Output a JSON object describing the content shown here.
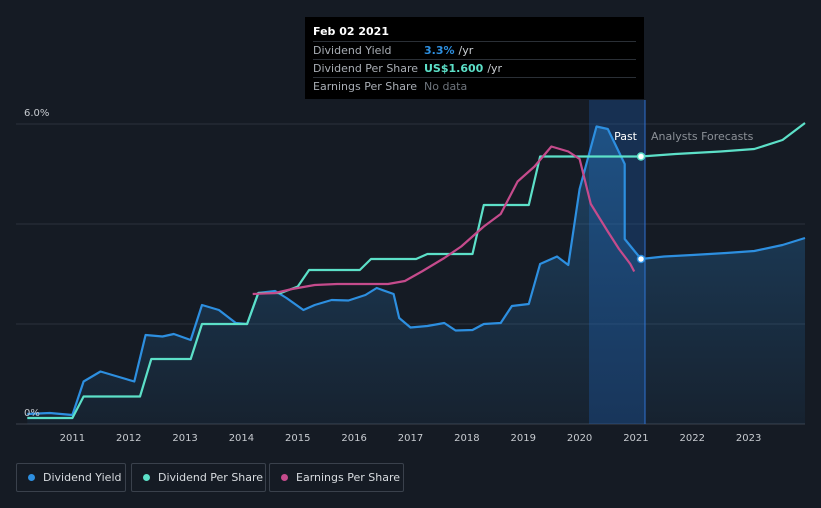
{
  "chart_data": {
    "type": "line",
    "x_ticks": [
      "2011",
      "2012",
      "2013",
      "2014",
      "2015",
      "2016",
      "2017",
      "2018",
      "2019",
      "2020",
      "2021",
      "2022",
      "2023"
    ],
    "y_ticks": [
      "0%",
      "6.0%"
    ],
    "ylim": [
      0,
      6.0
    ],
    "xlim": [
      2010.0,
      2024.0
    ],
    "past_label": "Past",
    "forecast_label": "Analysts Forecasts",
    "forecast_start": 2021.1,
    "series": [
      {
        "name": "Dividend Yield",
        "color": "#2d8fe0",
        "fill": true,
        "points": [
          [
            2010.2,
            0.2
          ],
          [
            2010.6,
            0.22
          ],
          [
            2011.0,
            0.18
          ],
          [
            2011.2,
            0.85
          ],
          [
            2011.5,
            1.05
          ],
          [
            2011.8,
            0.95
          ],
          [
            2012.1,
            0.85
          ],
          [
            2012.3,
            1.78
          ],
          [
            2012.6,
            1.75
          ],
          [
            2012.8,
            1.8
          ],
          [
            2013.1,
            1.68
          ],
          [
            2013.3,
            2.38
          ],
          [
            2013.6,
            2.28
          ],
          [
            2013.9,
            2.02
          ],
          [
            2014.1,
            2.0
          ],
          [
            2014.3,
            2.62
          ],
          [
            2014.6,
            2.66
          ],
          [
            2014.8,
            2.52
          ],
          [
            2015.1,
            2.28
          ],
          [
            2015.3,
            2.38
          ],
          [
            2015.6,
            2.48
          ],
          [
            2015.9,
            2.47
          ],
          [
            2016.2,
            2.58
          ],
          [
            2016.4,
            2.72
          ],
          [
            2016.7,
            2.6
          ],
          [
            2016.8,
            2.12
          ],
          [
            2017.0,
            1.93
          ],
          [
            2017.3,
            1.96
          ],
          [
            2017.6,
            2.02
          ],
          [
            2017.8,
            1.87
          ],
          [
            2018.1,
            1.88
          ],
          [
            2018.3,
            2.0
          ],
          [
            2018.6,
            2.02
          ],
          [
            2018.8,
            2.36
          ],
          [
            2019.1,
            2.4
          ],
          [
            2019.3,
            3.2
          ],
          [
            2019.6,
            3.35
          ],
          [
            2019.8,
            3.18
          ],
          [
            2020.0,
            4.7
          ],
          [
            2020.3,
            5.95
          ],
          [
            2020.5,
            5.9
          ],
          [
            2020.8,
            5.2
          ],
          [
            2020.8,
            3.7
          ],
          [
            2021.09,
            3.3
          ],
          [
            2021.5,
            3.35
          ],
          [
            2022.0,
            3.38
          ],
          [
            2022.6,
            3.42
          ],
          [
            2023.1,
            3.46
          ],
          [
            2023.6,
            3.58
          ],
          [
            2024.0,
            3.72
          ]
        ]
      },
      {
        "name": "Dividend Per Share",
        "color": "#5ce0c8",
        "fill": false,
        "points": [
          [
            2010.2,
            0.12
          ],
          [
            2011.0,
            0.12
          ],
          [
            2011.2,
            0.55
          ],
          [
            2012.2,
            0.55
          ],
          [
            2012.4,
            1.3
          ],
          [
            2013.1,
            1.3
          ],
          [
            2013.3,
            2.0
          ],
          [
            2014.1,
            2.0
          ],
          [
            2014.3,
            2.62
          ],
          [
            2014.7,
            2.62
          ],
          [
            2015.0,
            2.75
          ],
          [
            2015.2,
            3.08
          ],
          [
            2016.1,
            3.08
          ],
          [
            2016.3,
            3.3
          ],
          [
            2017.1,
            3.3
          ],
          [
            2017.3,
            3.4
          ],
          [
            2018.1,
            3.4
          ],
          [
            2018.3,
            4.38
          ],
          [
            2019.1,
            4.38
          ],
          [
            2019.3,
            5.35
          ],
          [
            2020.2,
            5.35
          ],
          [
            2021.09,
            5.35
          ],
          [
            2021.7,
            5.4
          ],
          [
            2022.5,
            5.45
          ],
          [
            2023.1,
            5.5
          ],
          [
            2023.6,
            5.68
          ],
          [
            2024.0,
            6.02
          ]
        ]
      },
      {
        "name": "Earnings Per Share",
        "color": "#c54b8c",
        "fill": false,
        "points": [
          [
            2014.2,
            2.6
          ],
          [
            2014.6,
            2.62
          ],
          [
            2014.9,
            2.7
          ],
          [
            2015.3,
            2.78
          ],
          [
            2015.7,
            2.8
          ],
          [
            2016.2,
            2.8
          ],
          [
            2016.6,
            2.8
          ],
          [
            2016.9,
            2.86
          ],
          [
            2017.2,
            3.05
          ],
          [
            2017.6,
            3.32
          ],
          [
            2017.9,
            3.55
          ],
          [
            2018.3,
            3.95
          ],
          [
            2018.6,
            4.2
          ],
          [
            2018.9,
            4.85
          ],
          [
            2019.2,
            5.15
          ],
          [
            2019.5,
            5.55
          ],
          [
            2019.8,
            5.45
          ],
          [
            2020.0,
            5.3
          ],
          [
            2020.2,
            4.4
          ],
          [
            2020.5,
            3.85
          ],
          [
            2020.7,
            3.5
          ],
          [
            2020.9,
            3.2
          ],
          [
            2020.97,
            3.05
          ]
        ]
      }
    ]
  },
  "tooltip": {
    "date": "Feb 02 2021",
    "rows": [
      {
        "label": "Dividend Yield",
        "value": "3.3%",
        "unit": "/yr",
        "color": "#2d8fe0"
      },
      {
        "label": "Dividend Per Share",
        "value": "US$1.600",
        "unit": "/yr",
        "color": "#5ce0c8"
      },
      {
        "label": "Earnings Per Share",
        "value": "No data",
        "unit": "",
        "color": "#6e747c"
      }
    ]
  },
  "legend": [
    {
      "label": "Dividend Yield",
      "color": "#2d8fe0"
    },
    {
      "label": "Dividend Per Share",
      "color": "#5ce0c8"
    },
    {
      "label": "Earnings Per Share",
      "color": "#c54b8c"
    }
  ]
}
